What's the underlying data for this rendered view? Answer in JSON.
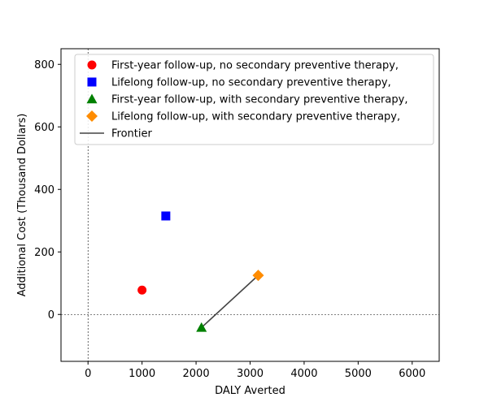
{
  "chart_data": {
    "type": "scatter",
    "title": "",
    "xlabel": "DALY Averted",
    "ylabel": "Additional Cost (Thousand Dollars)",
    "xlim": [
      -500,
      6500
    ],
    "ylim": [
      -150,
      850
    ],
    "xticks": [
      0,
      1000,
      2000,
      3000,
      4000,
      5000,
      6000
    ],
    "yticks": [
      0,
      200,
      400,
      600,
      800
    ],
    "grid": false,
    "reference_lines": {
      "x": 0,
      "y": 0,
      "style": "dashed"
    },
    "legend_position": "top",
    "series": [
      {
        "name": "First-year follow-up, no secondary preventive therapy,",
        "marker": "circle",
        "color": "#ff0000",
        "x": [
          1000
        ],
        "y": [
          78
        ]
      },
      {
        "name": "Lifelong follow-up, no secondary preventive therapy,",
        "marker": "square",
        "color": "#0000ff",
        "x": [
          1440
        ],
        "y": [
          315
        ]
      },
      {
        "name": "First-year follow-up, with secondary preventive therapy,",
        "marker": "triangle",
        "color": "#008000",
        "x": [
          2100
        ],
        "y": [
          -42
        ]
      },
      {
        "name": "Lifelong follow-up, with secondary preventive therapy,",
        "marker": "diamond",
        "color": "#ff8c00",
        "x": [
          3150
        ],
        "y": [
          125
        ]
      }
    ],
    "frontier": {
      "name": "Frontier",
      "color": "#444444",
      "x": [
        2100,
        3150
      ],
      "y": [
        -42,
        125
      ]
    }
  }
}
